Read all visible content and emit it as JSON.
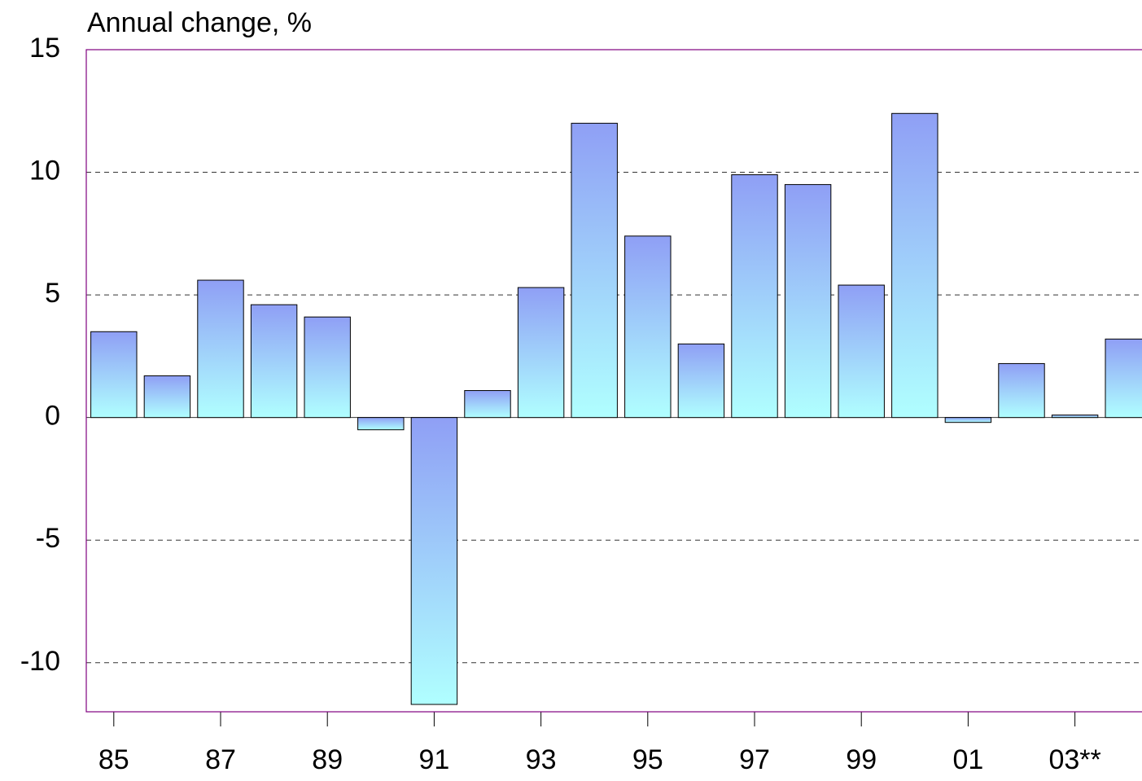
{
  "chart_data": {
    "type": "bar",
    "title": "Annual change, %",
    "categories": [
      "85",
      null,
      "87",
      null,
      "89",
      null,
      "91",
      null,
      "93",
      null,
      "95",
      null,
      "97",
      null,
      "99",
      null,
      "01",
      null,
      "03**",
      null
    ],
    "values": [
      3.5,
      1.7,
      5.6,
      4.6,
      4.1,
      -0.5,
      -11.7,
      1.1,
      5.3,
      12.0,
      7.4,
      3.0,
      9.9,
      9.5,
      5.4,
      12.4,
      -0.2,
      2.2,
      0.1,
      3.2
    ],
    "color": [
      "#8f9ff5",
      "#b0ffff"
    ],
    "ylim": [
      -12,
      15
    ],
    "yticks": [
      -10,
      -5,
      0,
      5,
      10,
      15
    ],
    "grid": true
  }
}
